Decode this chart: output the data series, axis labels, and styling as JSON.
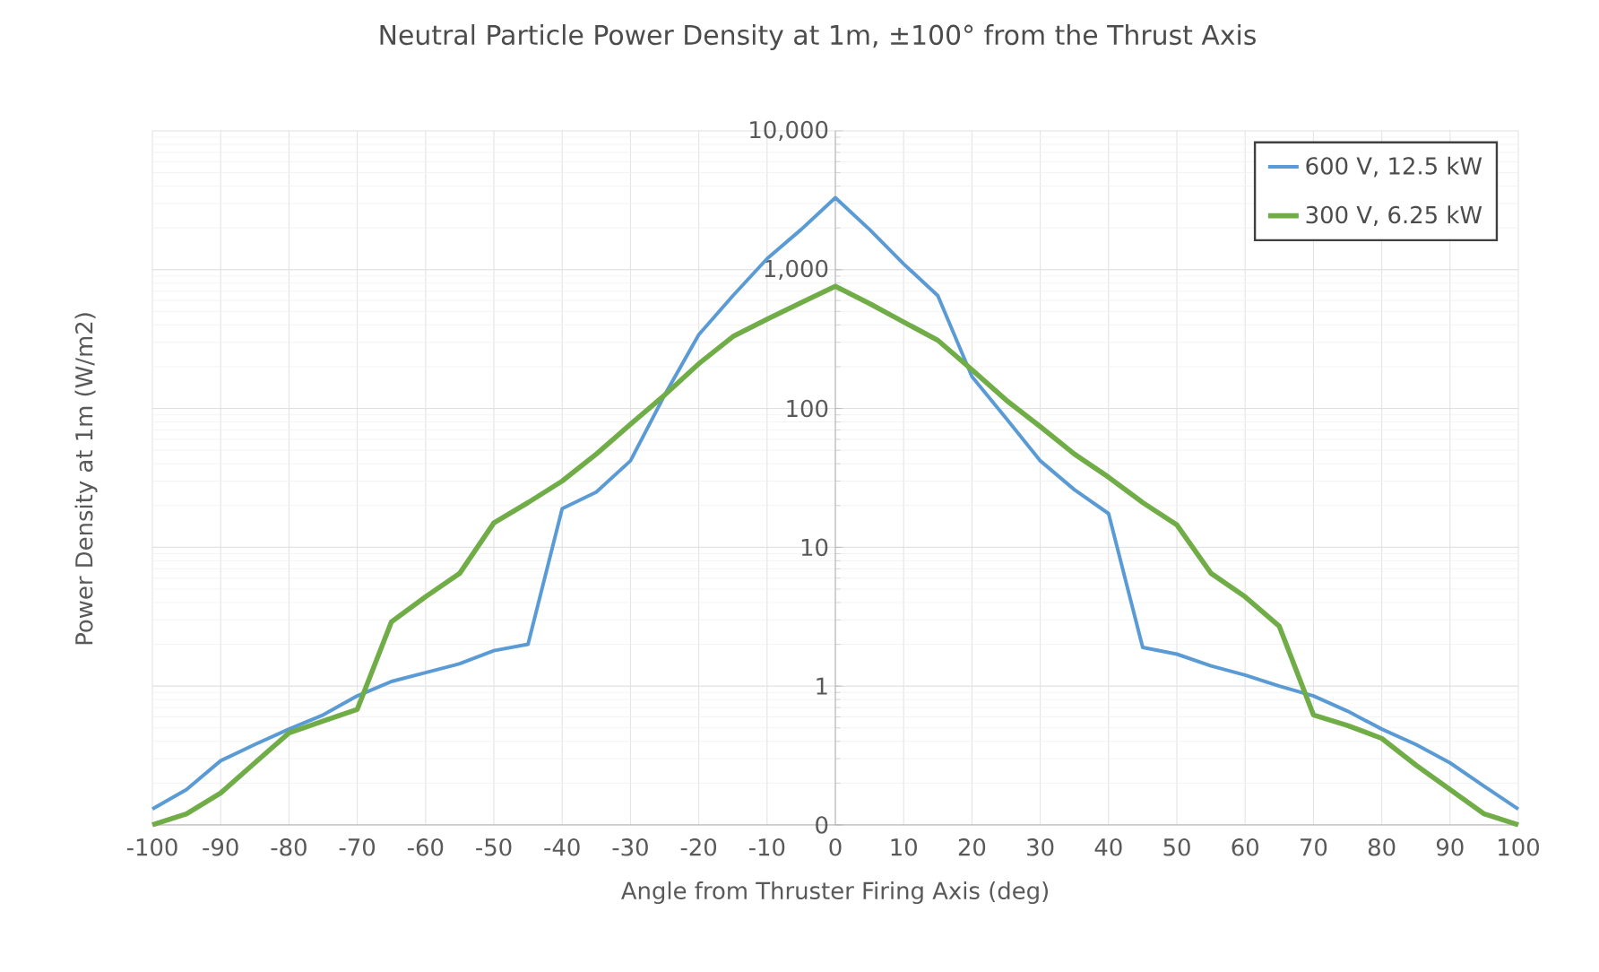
{
  "chart_data": {
    "type": "line",
    "title": "Neutral Particle Power Density at 1m, ±100° from the Thrust Axis",
    "xlabel": "Angle from Thruster Firing Axis (deg)",
    "ylabel": "Power Density at 1m (W/m2)",
    "x": [
      -100,
      -95,
      -90,
      -85,
      -80,
      -75,
      -70,
      -65,
      -60,
      -55,
      -50,
      -45,
      -40,
      -35,
      -30,
      -25,
      -20,
      -15,
      -10,
      -5,
      0,
      5,
      10,
      15,
      20,
      25,
      30,
      35,
      40,
      45,
      50,
      55,
      60,
      65,
      70,
      75,
      80,
      85,
      90,
      95,
      100
    ],
    "series": [
      {
        "name": "600 V, 12.5 kW",
        "color": "#5b9bd5",
        "values": [
          0.13,
          0.18,
          0.29,
          0.38,
          0.49,
          0.62,
          0.85,
          1.08,
          1.25,
          1.45,
          1.8,
          2.0,
          19,
          25,
          42,
          125,
          340,
          650,
          1200,
          1950,
          3300,
          1950,
          1100,
          650,
          170,
          85,
          42,
          26,
          17.5,
          1.9,
          1.7,
          1.4,
          1.2,
          1.0,
          0.85,
          0.66,
          0.49,
          0.38,
          0.28,
          0.19,
          0.13
        ]
      },
      {
        "name": "300 V, 6.25 kW",
        "color": "#70ad47",
        "values": [
          0.1,
          0.12,
          0.17,
          0.28,
          0.46,
          0.56,
          0.68,
          2.9,
          4.4,
          6.5,
          15,
          21,
          30,
          47,
          77,
          125,
          210,
          330,
          440,
          580,
          760,
          570,
          420,
          310,
          190,
          115,
          74,
          47,
          32,
          21,
          14.5,
          6.5,
          4.4,
          2.7,
          0.62,
          0.52,
          0.42,
          0.27,
          0.18,
          0.12,
          0.1
        ]
      }
    ],
    "xlim": [
      -100,
      100
    ],
    "xticks": [
      -100,
      -90,
      -80,
      -70,
      -60,
      -50,
      -40,
      -30,
      -20,
      -10,
      0,
      10,
      20,
      30,
      40,
      50,
      60,
      70,
      80,
      90,
      100
    ],
    "ylim": [
      0.1,
      10000
    ],
    "yticks": [
      {
        "value": 0.1,
        "label": "0"
      },
      1,
      10,
      100,
      {
        "value": 1000,
        "label": "1,000"
      },
      {
        "value": 10000,
        "label": "10,000"
      }
    ],
    "log": "y",
    "grid": true,
    "legend": "top right",
    "marker": "none",
    "line_style": "solid"
  }
}
